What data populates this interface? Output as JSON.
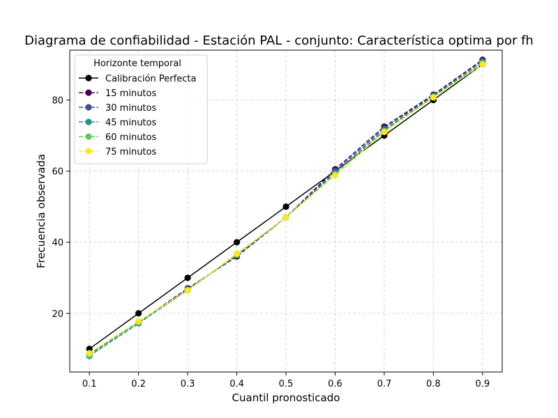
{
  "chart_data": {
    "type": "line",
    "title": "Diagrama de confiabilidad - Estación PAL - conjunto: Característica optima por fh",
    "xlabel": "Cuantil pronosticado",
    "ylabel": "Frecuencia observada",
    "xlim": [
      0.06,
      0.94
    ],
    "ylim": [
      3.5,
      94
    ],
    "xticks": [
      0.1,
      0.2,
      0.3,
      0.4,
      0.5,
      0.6,
      0.7,
      0.8,
      0.9
    ],
    "xtick_labels": [
      "0.1",
      "0.2",
      "0.3",
      "0.4",
      "0.5",
      "0.6",
      "0.7",
      "0.8",
      "0.9"
    ],
    "yticks": [
      20,
      40,
      60,
      80
    ],
    "ytick_labels": [
      "20",
      "40",
      "60",
      "80"
    ],
    "grid": true,
    "legend": {
      "title": "Horizonte temporal",
      "placement": "top-left"
    },
    "x": [
      0.1,
      0.2,
      0.3,
      0.4,
      0.5,
      0.6,
      0.7,
      0.8,
      0.9
    ],
    "series": [
      {
        "name": "Calibración Perfecta",
        "color": "#000000",
        "style": "solid",
        "values": [
          10,
          20,
          30,
          40,
          50,
          60,
          70,
          80,
          90
        ]
      },
      {
        "name": "15 minutos",
        "color": "#440154",
        "style": "dashed",
        "values": [
          8.5,
          17.5,
          27,
          36,
          47,
          60.5,
          72.5,
          81.5,
          91.3
        ]
      },
      {
        "name": "30 minutos",
        "color": "#3b528b",
        "style": "dashed",
        "values": [
          8.3,
          17.3,
          26.8,
          36.3,
          47,
          60,
          72,
          81.3,
          91
        ]
      },
      {
        "name": "45 minutos",
        "color": "#21918c",
        "style": "dashed",
        "values": [
          8,
          17.2,
          26.5,
          36.5,
          47,
          59.5,
          71.5,
          81,
          90.5
        ]
      },
      {
        "name": "60 minutos",
        "color": "#5ec962",
        "style": "dashed",
        "values": [
          8.3,
          17.5,
          26.5,
          36.5,
          47,
          59,
          71.2,
          80.8,
          90.3
        ]
      },
      {
        "name": "75 minutos",
        "color": "#fde725",
        "style": "dashed",
        "values": [
          8.8,
          17.8,
          26.5,
          36.8,
          47,
          58.8,
          71,
          80.7,
          90
        ]
      }
    ]
  }
}
